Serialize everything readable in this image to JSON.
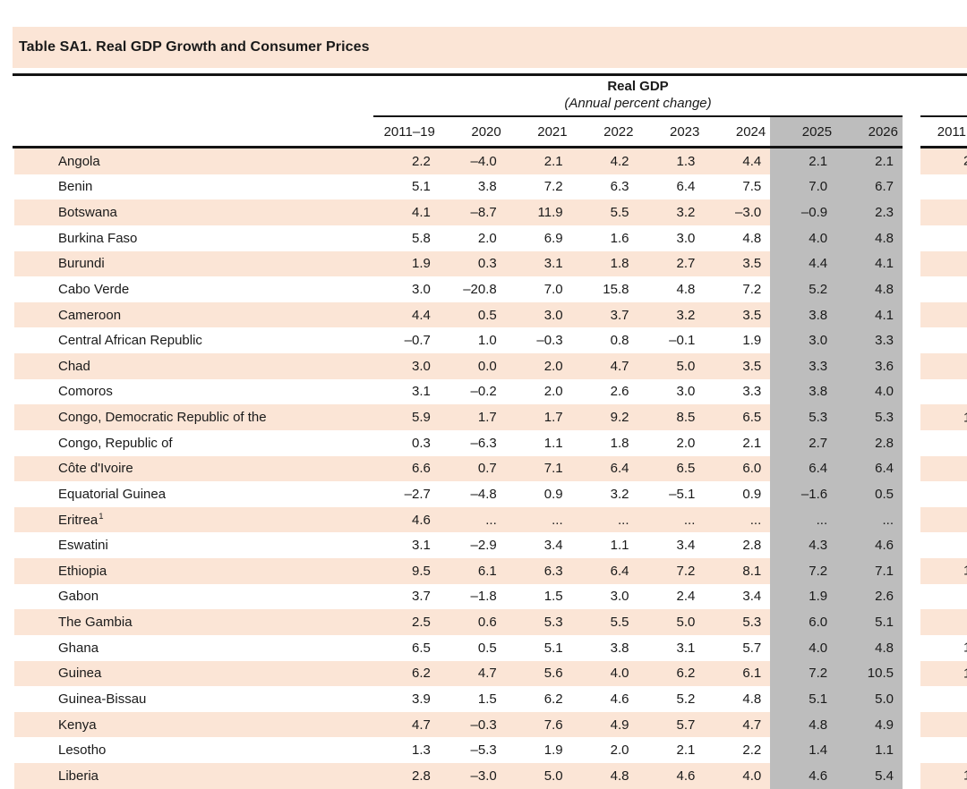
{
  "table": {
    "title": "Table SA1. Real GDP Growth and Consumer Prices",
    "section_real_gdp": {
      "header": "Real GDP",
      "subheader": "(Annual percent change)",
      "year_columns": [
        "2011–19",
        "2020",
        "2021",
        "2022",
        "2023",
        "2024",
        "2025",
        "2026"
      ],
      "shaded_year_columns": [
        "2025",
        "2026"
      ]
    },
    "next_section_partial": {
      "visible_year_header": "2011"
    },
    "rows": [
      {
        "country": "Angola",
        "sup": "",
        "values": [
          "2.2",
          "–4.0",
          "2.1",
          "4.2",
          "1.3",
          "4.4",
          "2.1",
          "2.1"
        ],
        "next_partial": "2"
      },
      {
        "country": "Benin",
        "sup": "",
        "values": [
          "5.1",
          "3.8",
          "7.2",
          "6.3",
          "6.4",
          "7.5",
          "7.0",
          "6.7"
        ],
        "next_partial": ""
      },
      {
        "country": "Botswana",
        "sup": "",
        "values": [
          "4.1",
          "–8.7",
          "11.9",
          "5.5",
          "3.2",
          "–3.0",
          "–0.9",
          "2.3"
        ],
        "next_partial": ""
      },
      {
        "country": "Burkina Faso",
        "sup": "",
        "values": [
          "5.8",
          "2.0",
          "6.9",
          "1.6",
          "3.0",
          "4.8",
          "4.0",
          "4.8"
        ],
        "next_partial": ""
      },
      {
        "country": "Burundi",
        "sup": "",
        "values": [
          "1.9",
          "0.3",
          "3.1",
          "1.8",
          "2.7",
          "3.5",
          "4.4",
          "4.1"
        ],
        "next_partial": ""
      },
      {
        "country": "Cabo Verde",
        "sup": "",
        "values": [
          "3.0",
          "–20.8",
          "7.0",
          "15.8",
          "4.8",
          "7.2",
          "5.2",
          "4.8"
        ],
        "next_partial": ""
      },
      {
        "country": "Cameroon",
        "sup": "",
        "values": [
          "4.4",
          "0.5",
          "3.0",
          "3.7",
          "3.2",
          "3.5",
          "3.8",
          "4.1"
        ],
        "next_partial": ""
      },
      {
        "country": "Central African Republic",
        "sup": "",
        "values": [
          "–0.7",
          "1.0",
          "–0.3",
          "0.8",
          "–0.1",
          "1.9",
          "3.0",
          "3.3"
        ],
        "next_partial": ""
      },
      {
        "country": "Chad",
        "sup": "",
        "values": [
          "3.0",
          "0.0",
          "2.0",
          "4.7",
          "5.0",
          "3.5",
          "3.3",
          "3.6"
        ],
        "next_partial": ""
      },
      {
        "country": "Comoros",
        "sup": "",
        "values": [
          "3.1",
          "–0.2",
          "2.0",
          "2.6",
          "3.0",
          "3.3",
          "3.8",
          "4.0"
        ],
        "next_partial": ""
      },
      {
        "country": "Congo, Democratic Republic of the",
        "sup": "",
        "values": [
          "5.9",
          "1.7",
          "1.7",
          "9.2",
          "8.5",
          "6.5",
          "5.3",
          "5.3"
        ],
        "next_partial": "1"
      },
      {
        "country": "Congo, Republic of",
        "sup": "",
        "values": [
          "0.3",
          "–6.3",
          "1.1",
          "1.8",
          "2.0",
          "2.1",
          "2.7",
          "2.8"
        ],
        "next_partial": ""
      },
      {
        "country": "Côte d'Ivoire",
        "sup": "",
        "values": [
          "6.6",
          "0.7",
          "7.1",
          "6.4",
          "6.5",
          "6.0",
          "6.4",
          "6.4"
        ],
        "next_partial": ""
      },
      {
        "country": "Equatorial Guinea",
        "sup": "",
        "values": [
          "–2.7",
          "–4.8",
          "0.9",
          "3.2",
          "–5.1",
          "0.9",
          "–1.6",
          "0.5"
        ],
        "next_partial": ""
      },
      {
        "country": "Eritrea",
        "sup": "1",
        "values": [
          "4.6",
          "...",
          "...",
          "...",
          "...",
          "...",
          "...",
          "..."
        ],
        "next_partial": ""
      },
      {
        "country": "Eswatini",
        "sup": "",
        "values": [
          "3.1",
          "–2.9",
          "3.4",
          "1.1",
          "3.4",
          "2.8",
          "4.3",
          "4.6"
        ],
        "next_partial": ""
      },
      {
        "country": "Ethiopia",
        "sup": "",
        "values": [
          "9.5",
          "6.1",
          "6.3",
          "6.4",
          "7.2",
          "8.1",
          "7.2",
          "7.1"
        ],
        "next_partial": "1"
      },
      {
        "country": "Gabon",
        "sup": "",
        "values": [
          "3.7",
          "–1.8",
          "1.5",
          "3.0",
          "2.4",
          "3.4",
          "1.9",
          "2.6"
        ],
        "next_partial": ""
      },
      {
        "country": "The Gambia",
        "sup": "",
        "values": [
          "2.5",
          "0.6",
          "5.3",
          "5.5",
          "5.0",
          "5.3",
          "6.0",
          "5.1"
        ],
        "next_partial": ""
      },
      {
        "country": "Ghana",
        "sup": "",
        "values": [
          "6.5",
          "0.5",
          "5.1",
          "3.8",
          "3.1",
          "5.7",
          "4.0",
          "4.8"
        ],
        "next_partial": "1"
      },
      {
        "country": "Guinea",
        "sup": "",
        "values": [
          "6.2",
          "4.7",
          "5.6",
          "4.0",
          "6.2",
          "6.1",
          "7.2",
          "10.5"
        ],
        "next_partial": "1"
      },
      {
        "country": "Guinea-Bissau",
        "sup": "",
        "values": [
          "3.9",
          "1.5",
          "6.2",
          "4.6",
          "5.2",
          "4.8",
          "5.1",
          "5.0"
        ],
        "next_partial": ""
      },
      {
        "country": "Kenya",
        "sup": "",
        "values": [
          "4.7",
          "–0.3",
          "7.6",
          "4.9",
          "5.7",
          "4.7",
          "4.8",
          "4.9"
        ],
        "next_partial": ""
      },
      {
        "country": "Lesotho",
        "sup": "",
        "values": [
          "1.3",
          "–5.3",
          "1.9",
          "2.0",
          "2.1",
          "2.2",
          "1.4",
          "1.1"
        ],
        "next_partial": ""
      },
      {
        "country": "Liberia",
        "sup": "",
        "values": [
          "2.8",
          "–3.0",
          "5.0",
          "4.8",
          "4.6",
          "4.0",
          "4.6",
          "5.4"
        ],
        "next_partial": "1"
      }
    ]
  },
  "colors": {
    "band_peach": "#fbe5d6",
    "shade_gray": "#bdbdbd",
    "rule_black": "#141414",
    "text": "#1a1a1a"
  }
}
